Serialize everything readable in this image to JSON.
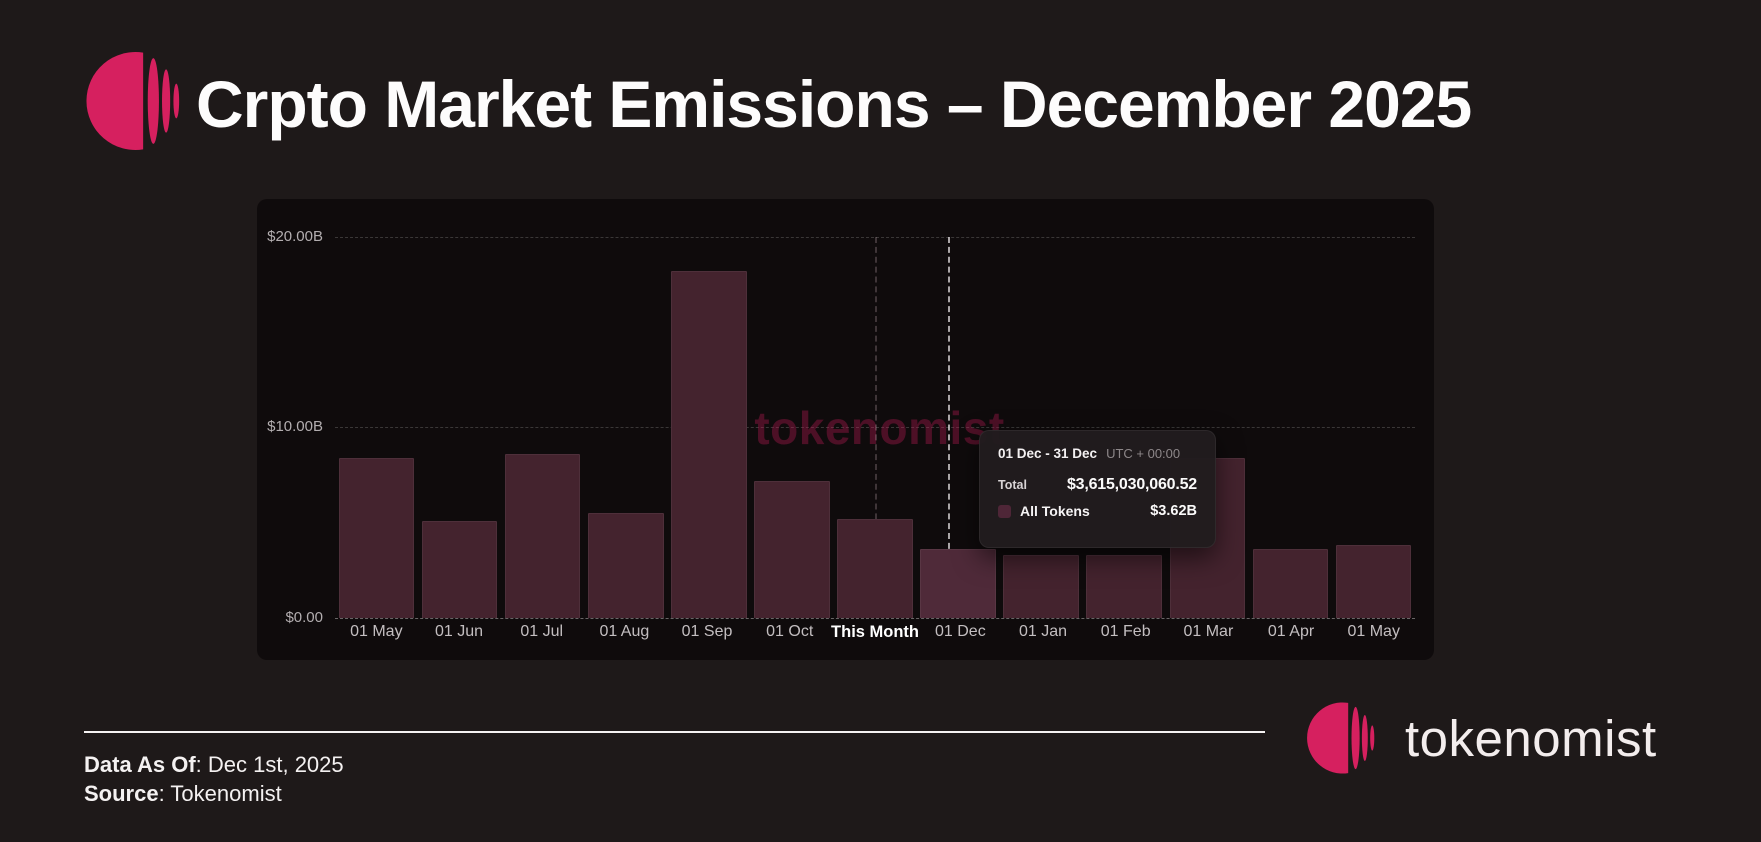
{
  "header": {
    "title": "Crpto Market Emissions – December 2025"
  },
  "chart_data": {
    "type": "bar",
    "categories": [
      "01 May",
      "01 Jun",
      "01 Jul",
      "01 Aug",
      "01 Sep",
      "01 Oct",
      "This Month",
      "01 Dec",
      "01 Jan",
      "01 Feb",
      "01 Mar",
      "01 Apr",
      "01 May"
    ],
    "values": [
      8.4,
      5.1,
      8.6,
      5.5,
      18.2,
      7.2,
      5.2,
      3.62,
      3.3,
      3.3,
      8.4,
      3.6,
      3.85
    ],
    "unit": "USD billions",
    "ylim": [
      0,
      20
    ],
    "yticks": [
      "$20.00B",
      "$10.00B",
      "$0.00"
    ],
    "grid": "horizontal-dashed",
    "legend_position": "none",
    "highlighted_label": "This Month",
    "crosshair_label": "01 Dec"
  },
  "tooltip": {
    "date_range": "01 Dec - 31 Dec",
    "timezone": "UTC + 00:00",
    "total_label": "Total",
    "total_value": "$3,615,030,060.52",
    "series_label": "All Tokens",
    "series_value": "$3.62B",
    "swatch_color": "#4e2637"
  },
  "watermark": {
    "text": "tokenomist"
  },
  "footer": {
    "data_as_of_label": "Data As Of",
    "data_as_of_value": ": Dec 1st, 2025",
    "source_label": "Source",
    "source_value": ": Tokenomist",
    "brand_name": "tokenomist"
  },
  "colors": {
    "brand_pink": "#d6205f",
    "page_bg": "#1e1919",
    "panel_bg": "#0f0b0c",
    "bar": "#44232e",
    "bar_hover": "#4f2a39",
    "watermark_pink": "rgba(203,28,92,0.33)"
  }
}
